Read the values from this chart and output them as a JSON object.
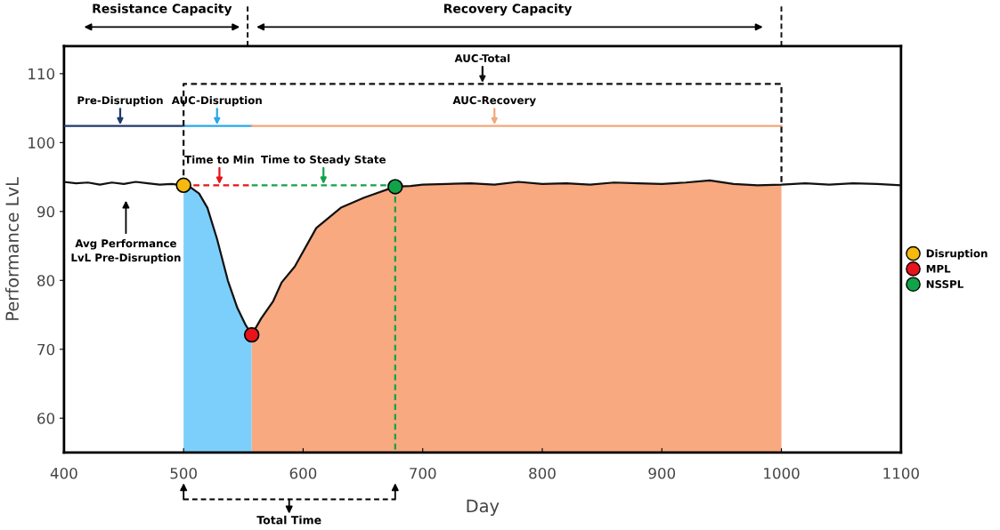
{
  "chart_data": {
    "type": "line",
    "xlabel": "Day",
    "ylabel": "Performance LvL",
    "xlim": [
      400,
      1100
    ],
    "xticks": [
      400,
      500,
      600,
      700,
      800,
      900,
      1000,
      1100
    ],
    "ylim": [
      55,
      114
    ],
    "yticks": [
      60,
      70,
      80,
      90,
      100,
      110
    ],
    "legend": "right",
    "series": [
      {
        "color": "#111111",
        "x": [
          400,
          410,
          420,
          430,
          440,
          450,
          460,
          470,
          480,
          490,
          500,
          505,
          513,
          520,
          528,
          537,
          545,
          552,
          557,
          565,
          575,
          582,
          593,
          611,
          632,
          651,
          677,
          690,
          700,
          720,
          740,
          760,
          780,
          800,
          820,
          840,
          860,
          880,
          900,
          920,
          940,
          960,
          980,
          1000,
          1020,
          1040,
          1060,
          1080,
          1100
        ],
        "values": [
          94.3,
          94.1,
          94.2,
          93.9,
          94.2,
          94.0,
          94.3,
          94.1,
          93.9,
          94.0,
          93.8,
          93.6,
          92.6,
          90.5,
          86,
          80,
          76,
          73.5,
          72.1,
          74.5,
          77,
          79.7,
          82,
          87.6,
          90.6,
          92.0,
          93.6,
          93.7,
          93.9,
          94.0,
          94.1,
          93.9,
          94.3,
          94.0,
          94.1,
          93.9,
          94.2,
          94.1,
          94.0,
          94.2,
          94.5,
          94.0,
          93.8,
          93.9,
          94.1,
          93.9,
          94.1,
          94.0,
          93.8
        ]
      },
      {
        "type": "area",
        "color": "#7dcffb",
        "x": [
          500,
          505,
          513,
          520,
          528,
          537,
          545,
          552,
          557
        ],
        "values": [
          93.8,
          93.6,
          92.6,
          90.5,
          86,
          80,
          76,
          73.5,
          72.1
        ]
      },
      {
        "type": "area",
        "color": "#f8a97f",
        "x": [
          557,
          565,
          575,
          582,
          593,
          611,
          632,
          651,
          677,
          690,
          700,
          720,
          740,
          760,
          780,
          800,
          820,
          840,
          860,
          880,
          900,
          920,
          940,
          960,
          980,
          1000
        ],
        "values": [
          72.1,
          74.5,
          77,
          79.7,
          82,
          87.6,
          90.6,
          92.0,
          93.6,
          93.7,
          93.9,
          94.0,
          94.1,
          93.9,
          94.3,
          94.0,
          94.1,
          93.9,
          94.2,
          94.1,
          94.0,
          94.2,
          94.5,
          94.0,
          93.8,
          93.9
        ]
      },
      {
        "type": "line",
        "color": "#1f3a6e",
        "x": [
          400,
          500
        ],
        "values": [
          102.4,
          102.4
        ]
      },
      {
        "type": "line",
        "color": "#29a8e8",
        "x": [
          500,
          557
        ],
        "values": [
          102.4,
          102.4
        ]
      },
      {
        "type": "line",
        "color": "#f4a77a",
        "x": [
          557,
          1000
        ],
        "values": [
          102.4,
          102.4
        ]
      },
      {
        "type": "line",
        "color": "#111111",
        "line_style": "dashed",
        "x": [
          500,
          500,
          1000,
          1000
        ],
        "values": [
          93.8,
          108.5,
          108.5,
          93.9
        ]
      },
      {
        "type": "line",
        "color": "#e8131b",
        "line_style": "dashed",
        "x": [
          500,
          557
        ],
        "values": [
          93.8,
          93.8
        ]
      },
      {
        "type": "line",
        "color": "#11a34a",
        "line_style": "dashed",
        "x": [
          557,
          677
        ],
        "values": [
          93.8,
          93.8
        ]
      },
      {
        "type": "line",
        "color": "#11a34a",
        "line_style": "dashed",
        "x": [
          677,
          677
        ],
        "values": [
          93.6,
          55
        ]
      },
      {
        "type": "scatter",
        "name": "Disruption",
        "color": "#f5b90f",
        "x": [
          500
        ],
        "values": [
          93.8
        ]
      },
      {
        "type": "scatter",
        "name": "MPL",
        "color": "#e8131b",
        "x": [
          557
        ],
        "values": [
          72.1
        ]
      },
      {
        "type": "scatter",
        "name": "NSSPL",
        "color": "#11a34a",
        "x": [
          677
        ],
        "values": [
          93.6
        ]
      }
    ],
    "annotations": [
      "Resistance Capacity",
      "Recovery Capacity",
      "Total Time",
      "Avg Performance\nLvL Pre-Disruption",
      {
        "text": "Pre-Disruption",
        "x": 447,
        "y": 102.4
      },
      {
        "text": "AUC-Disruption",
        "x": 528,
        "y": 102.4
      },
      {
        "text": "AUC-Recovery",
        "x": 760,
        "y": 102.4
      },
      {
        "text": "AUC-Total",
        "x": 750,
        "y": 108.5
      },
      {
        "text": "Time to Min",
        "x": 530,
        "y": 93.8
      },
      {
        "text": "Time to Steady State",
        "x": 617,
        "y": 93.8
      }
    ]
  }
}
